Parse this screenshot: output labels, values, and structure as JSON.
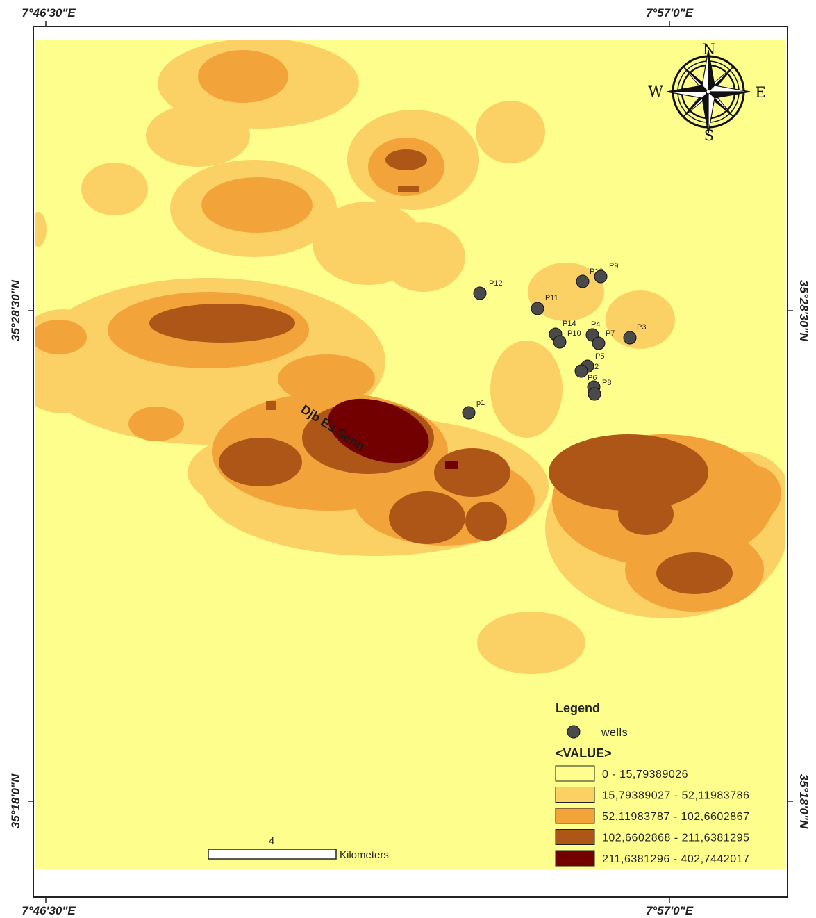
{
  "map": {
    "coords": {
      "lon_left": "7°46'30\"E",
      "lon_right": "7°57'0\"E",
      "lat_top": "35°28'30\"N",
      "lat_bottom": "35°18'0\"N"
    },
    "place_label": "Djb Es Senn",
    "wells": [
      {
        "label": "P12"
      },
      {
        "label": "P13"
      },
      {
        "label": "P9"
      },
      {
        "label": "P11"
      },
      {
        "label": "P14"
      },
      {
        "label": "P10"
      },
      {
        "label": "P4"
      },
      {
        "label": "P7"
      },
      {
        "label": "P3"
      },
      {
        "label": "P5"
      },
      {
        "label": "2"
      },
      {
        "label": "P6"
      },
      {
        "label": "P8"
      },
      {
        "label": "p1"
      }
    ],
    "compass": {
      "n": "N",
      "s": "S",
      "e": "E",
      "w": "W"
    },
    "scale": {
      "value": "4",
      "unit": "Kilometers"
    },
    "legend": {
      "title": "Legend",
      "wells_label": "wells",
      "value_header": "<VALUE>",
      "classes": [
        {
          "label": "0 - 15,79389026",
          "color": "#fefe8c"
        },
        {
          "label": "15,79389027 - 52,11983786",
          "color": "#fbd064"
        },
        {
          "label": "52,11983787 - 102,6602867",
          "color": "#f2a43a"
        },
        {
          "label": "102,6602868 - 211,6381295",
          "color": "#ae5618"
        },
        {
          "label": "211,6381296 - 402,7442017",
          "color": "#730000"
        }
      ]
    }
  }
}
